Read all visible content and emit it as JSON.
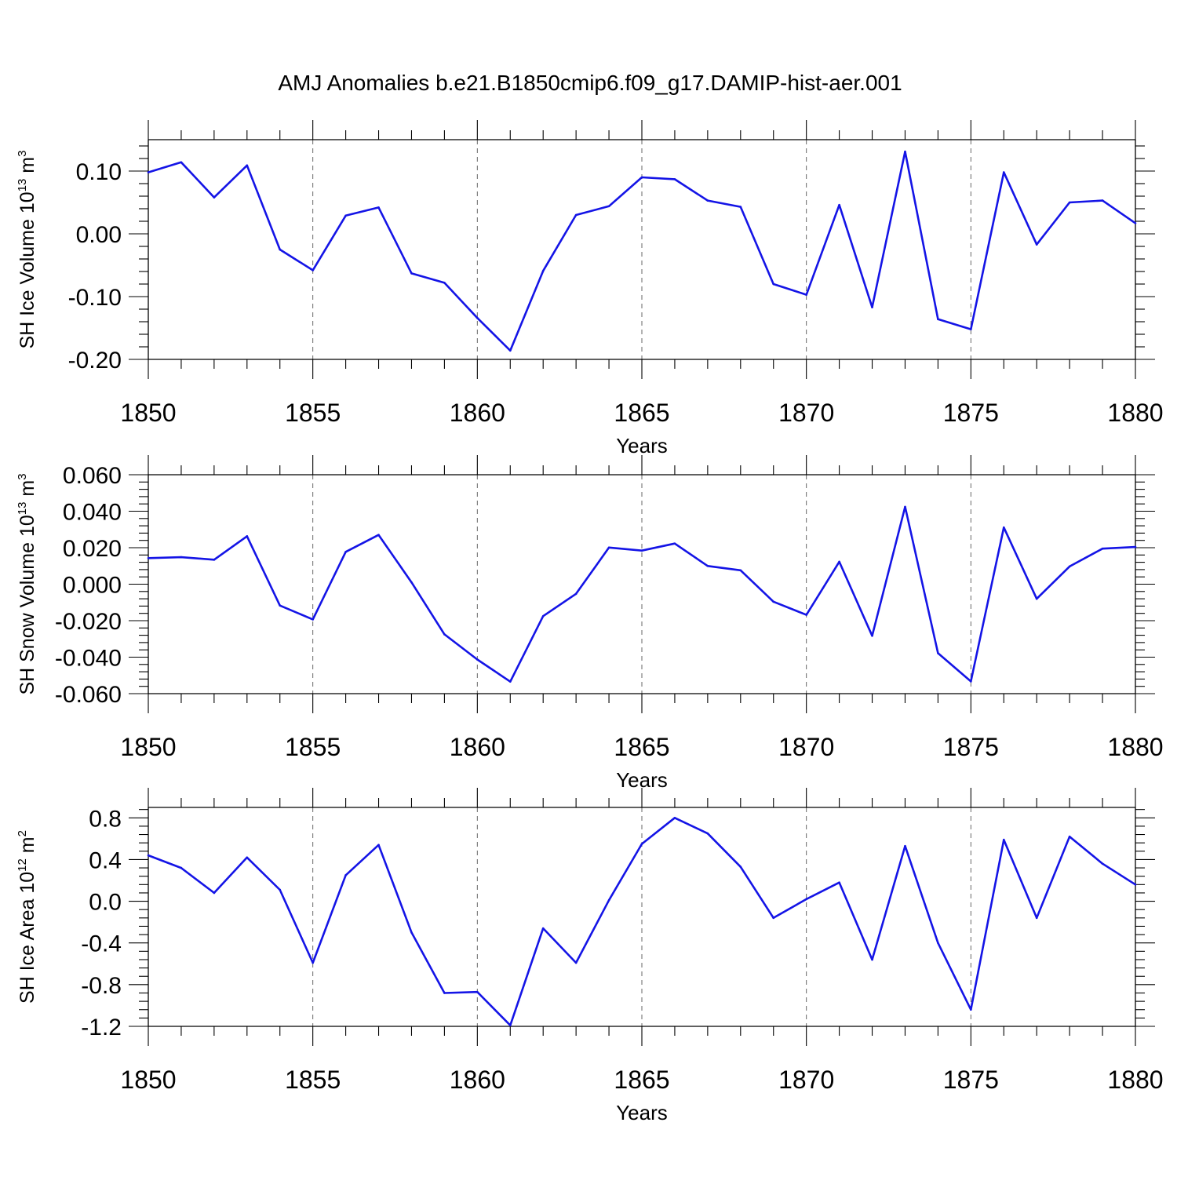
{
  "title": "AMJ Anomalies b.e21.B1850cmip6.f09_g17.DAMIP-hist-aer.001",
  "colors": {
    "series": "#1414e6",
    "axis": "#000000",
    "grid": "#666666"
  },
  "chart_data": [
    {
      "type": "line",
      "name": "ice-volume",
      "ylabel": {
        "text": "SH Ice Volume 10",
        "exp": "13",
        "unit": " m",
        "unit_exp": "3"
      },
      "xlabel": "Years",
      "x": [
        1850,
        1851,
        1852,
        1853,
        1854,
        1855,
        1856,
        1857,
        1858,
        1859,
        1860,
        1861,
        1862,
        1863,
        1864,
        1865,
        1866,
        1867,
        1868,
        1869,
        1870,
        1871,
        1872,
        1873,
        1874,
        1875,
        1876,
        1877,
        1878,
        1879,
        1880
      ],
      "values": [
        0.098,
        0.114,
        0.058,
        0.109,
        -0.025,
        -0.058,
        0.029,
        0.042,
        -0.063,
        -0.078,
        -0.134,
        -0.186,
        -0.059,
        0.03,
        0.044,
        0.09,
        0.087,
        0.053,
        0.043,
        -0.08,
        -0.097,
        0.046,
        -0.117,
        0.131,
        -0.136,
        -0.152,
        0.098,
        -0.017,
        0.05,
        0.053,
        0.017
      ],
      "xlim": [
        1850,
        1880
      ],
      "ylim": [
        -0.2,
        0.15
      ],
      "yticks": [
        -0.2,
        -0.1,
        0.0,
        0.1
      ],
      "ytick_labels": [
        "-0.20",
        "-0.10",
        "0.00",
        "0.10"
      ],
      "xticks": [
        1850,
        1855,
        1860,
        1865,
        1870,
        1875,
        1880
      ],
      "xtick_labels": [
        "1850",
        "1855",
        "1860",
        "1865",
        "1870",
        "1875",
        "1880"
      ],
      "grid": "dashed vertical at major x ticks"
    },
    {
      "type": "line",
      "name": "snow-volume",
      "ylabel": {
        "text": "SH Snow Volume 10",
        "exp": "13",
        "unit": " m",
        "unit_exp": "3"
      },
      "xlabel": "Years",
      "x": [
        1850,
        1851,
        1852,
        1853,
        1854,
        1855,
        1856,
        1857,
        1858,
        1859,
        1860,
        1861,
        1862,
        1863,
        1864,
        1865,
        1866,
        1867,
        1868,
        1869,
        1870,
        1871,
        1872,
        1873,
        1874,
        1875,
        1876,
        1877,
        1878,
        1879,
        1880
      ],
      "values": [
        0.0143,
        0.0148,
        0.0134,
        0.0263,
        -0.0117,
        -0.0193,
        0.0177,
        0.027,
        0.001,
        -0.0275,
        -0.0413,
        -0.0534,
        -0.0175,
        -0.0053,
        0.0201,
        0.0184,
        0.0223,
        0.01,
        0.0076,
        -0.0096,
        -0.0168,
        0.0123,
        -0.0283,
        0.0424,
        -0.0378,
        -0.0533,
        0.0311,
        -0.008,
        0.0097,
        0.0195,
        0.0204
      ],
      "xlim": [
        1850,
        1880
      ],
      "ylim": [
        -0.06,
        0.06
      ],
      "yticks": [
        -0.06,
        -0.04,
        -0.02,
        0.0,
        0.02,
        0.04,
        0.06
      ],
      "ytick_labels": [
        "-0.060",
        "-0.040",
        "-0.020",
        "0.000",
        "0.020",
        "0.040",
        "0.060"
      ],
      "xticks": [
        1850,
        1855,
        1860,
        1865,
        1870,
        1875,
        1880
      ],
      "xtick_labels": [
        "1850",
        "1855",
        "1860",
        "1865",
        "1870",
        "1875",
        "1880"
      ],
      "grid": "dashed vertical at major x ticks"
    },
    {
      "type": "line",
      "name": "ice-area",
      "ylabel": {
        "text": "SH Ice Area 10",
        "exp": "12",
        "unit": " m",
        "unit_exp": "2"
      },
      "xlabel": "Years",
      "x": [
        1850,
        1851,
        1852,
        1853,
        1854,
        1855,
        1856,
        1857,
        1858,
        1859,
        1860,
        1861,
        1862,
        1863,
        1864,
        1865,
        1866,
        1867,
        1868,
        1869,
        1870,
        1871,
        1872,
        1873,
        1874,
        1875,
        1876,
        1877,
        1878,
        1879,
        1880
      ],
      "values": [
        0.44,
        0.32,
        0.08,
        0.42,
        0.11,
        -0.59,
        0.25,
        0.54,
        -0.3,
        -0.88,
        -0.87,
        -1.19,
        -0.26,
        -0.59,
        0.01,
        0.55,
        0.8,
        0.65,
        0.33,
        -0.16,
        0.02,
        0.18,
        -0.56,
        0.53,
        -0.4,
        -1.04,
        0.59,
        -0.16,
        0.62,
        0.36,
        0.16
      ],
      "xlim": [
        1850,
        1880
      ],
      "ylim": [
        -1.2,
        0.9
      ],
      "yticks": [
        -1.2,
        -0.8,
        -0.4,
        0.0,
        0.4,
        0.8
      ],
      "ytick_labels": [
        "-1.2",
        "-0.8",
        "-0.4",
        "0.0",
        "0.4",
        "0.8"
      ],
      "xticks": [
        1850,
        1855,
        1860,
        1865,
        1870,
        1875,
        1880
      ],
      "xtick_labels": [
        "1850",
        "1855",
        "1860",
        "1865",
        "1870",
        "1875",
        "1880"
      ],
      "grid": "dashed vertical at major x ticks"
    }
  ]
}
